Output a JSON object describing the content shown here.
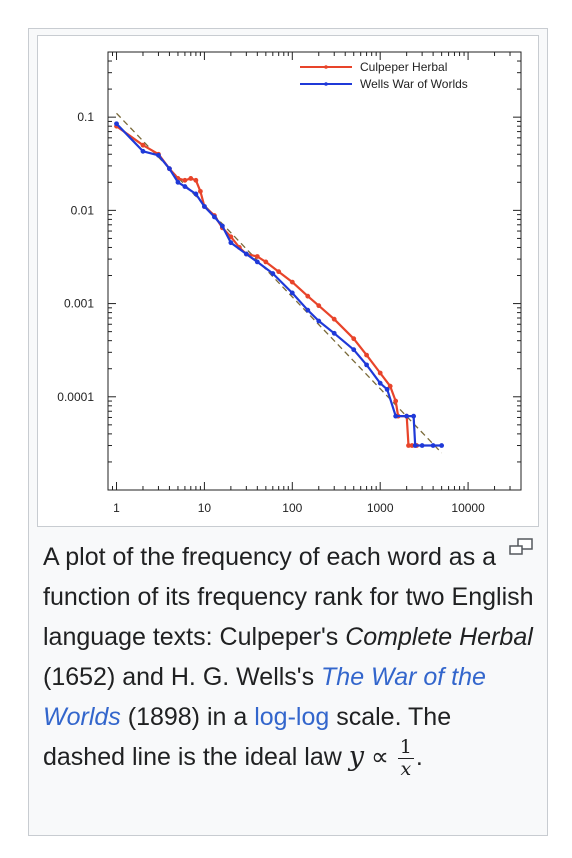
{
  "figure": {
    "enlarge_icon": "magnify-clip-icon",
    "caption": {
      "part1": "A plot of the frequency of each word as a function of its frequency rank for two English language texts: Culpeper's ",
      "herbal_title": "Complete Herbal",
      "part2": " (1652) and H. G. Wells's ",
      "wells_title": "The War of the Worlds",
      "part3": " (1898) in a ",
      "loglog_link": "log-log",
      "part4": " scale. The dashed line is the ideal law ",
      "math_y": "y",
      "math_prop": "∝",
      "math_num": "1",
      "math_den": "x",
      "part5": "."
    }
  },
  "chart_data": {
    "type": "line",
    "title": "",
    "xlabel": "",
    "ylabel": "",
    "x_scale": "log",
    "y_scale": "log",
    "xlim": [
      0.8,
      40000
    ],
    "ylim": [
      1e-05,
      0.5
    ],
    "x_ticks": [
      1,
      10,
      100,
      1000,
      10000
    ],
    "x_tick_labels": [
      "1",
      "10",
      "100",
      "1000",
      "10000"
    ],
    "y_ticks": [
      0.1,
      0.01,
      0.001,
      0.0001
    ],
    "y_tick_labels": [
      "0.1",
      "0.01",
      "0.001",
      "0.0001"
    ],
    "grid": false,
    "legend_position": "top-right",
    "reference_line": {
      "style": "dashed",
      "color": "#7a6a3a",
      "law": "1/x",
      "x": [
        1,
        5000
      ],
      "y": [
        0.11,
        2.5e-05
      ]
    },
    "series": [
      {
        "name": "Culpeper Herbal",
        "color": "#e8442a",
        "x": [
          1,
          2,
          3,
          4,
          5,
          6,
          7,
          8,
          9,
          10,
          13,
          16,
          20,
          25,
          30,
          40,
          50,
          70,
          100,
          150,
          200,
          300,
          500,
          700,
          1000,
          1300,
          1500,
          1600,
          2000,
          2100,
          2300,
          2600
        ],
        "y": [
          0.08,
          0.05,
          0.04,
          0.028,
          0.022,
          0.021,
          0.022,
          0.021,
          0.016,
          0.011,
          0.0088,
          0.0065,
          0.0052,
          0.004,
          0.0034,
          0.0032,
          0.0028,
          0.0022,
          0.0017,
          0.0012,
          0.00095,
          0.00068,
          0.00042,
          0.00028,
          0.00018,
          0.00013,
          9e-05,
          6.2e-05,
          6.2e-05,
          3e-05,
          3e-05,
          3e-05
        ]
      },
      {
        "name": "Wells War of Worlds",
        "color": "#1f39d8",
        "x": [
          1,
          2,
          3,
          4,
          5,
          6,
          8,
          10,
          13,
          16,
          20,
          30,
          40,
          60,
          100,
          150,
          200,
          300,
          500,
          700,
          1000,
          1200,
          1500,
          2000,
          2400,
          2500,
          3000,
          4000,
          5000
        ],
        "y": [
          0.085,
          0.043,
          0.039,
          0.028,
          0.02,
          0.018,
          0.015,
          0.011,
          0.0085,
          0.0068,
          0.0045,
          0.0034,
          0.0028,
          0.0021,
          0.0013,
          0.00085,
          0.00065,
          0.00048,
          0.00032,
          0.00022,
          0.00014,
          0.00012,
          6.2e-05,
          6.2e-05,
          6.2e-05,
          3e-05,
          3e-05,
          3e-05,
          3e-05
        ]
      }
    ]
  }
}
